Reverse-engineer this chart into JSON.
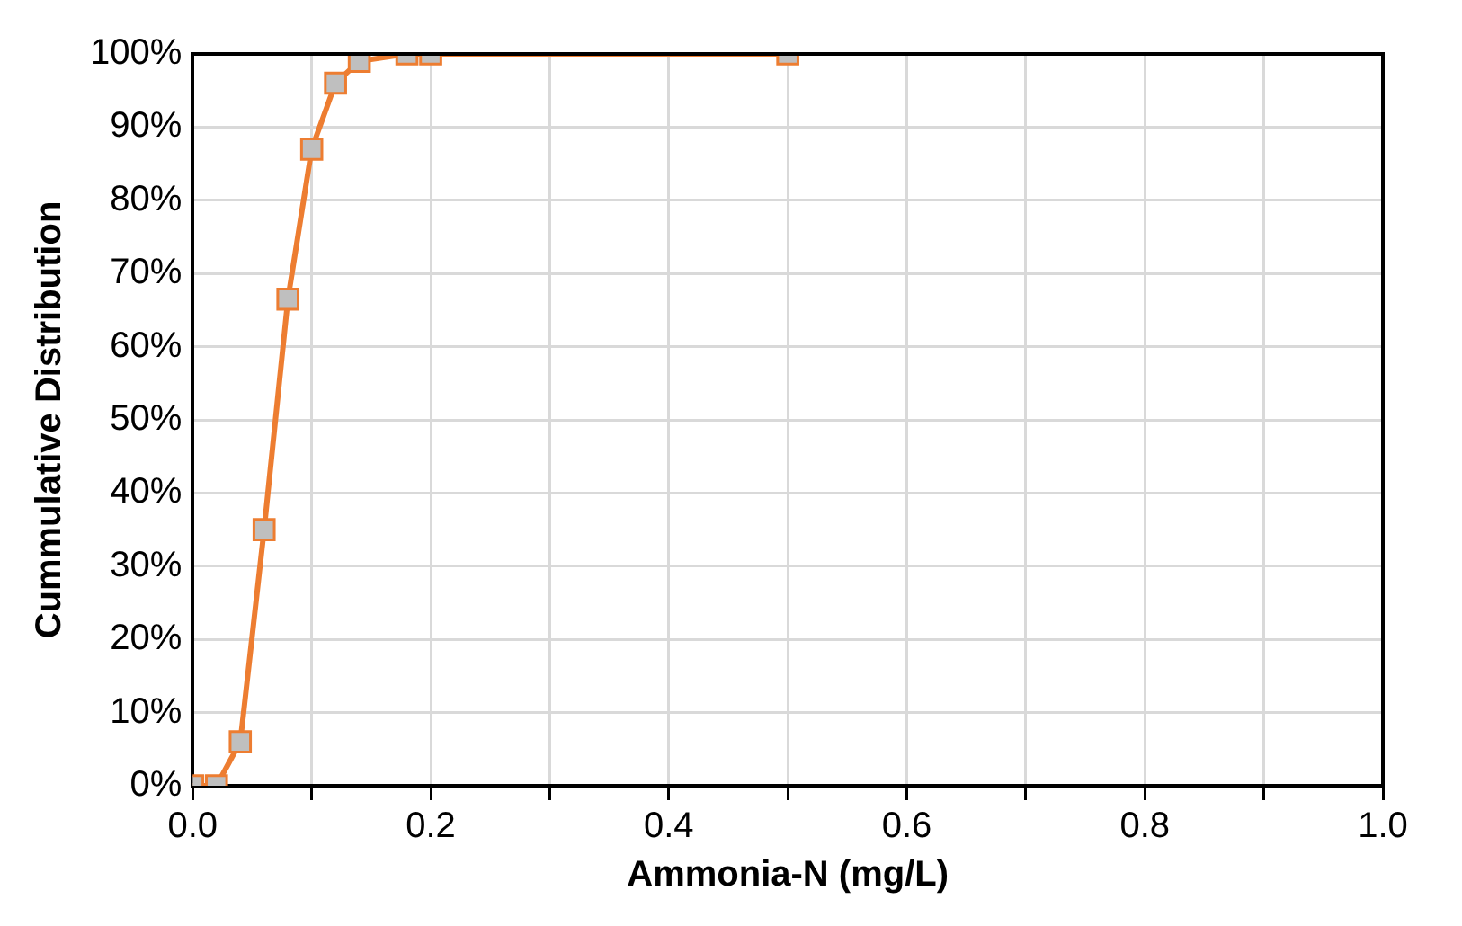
{
  "chart_data": {
    "type": "line",
    "xlabel": "Ammonia-N (mg/L)",
    "ylabel": "Cummulative Distribution",
    "x": [
      0,
      0.02,
      0.04,
      0.06,
      0.08,
      0.1,
      0.12,
      0.14,
      0.18,
      0.2,
      0.5
    ],
    "series": [
      {
        "color": "#ed7d31",
        "values": [
          0,
          0,
          6,
          35,
          66.5,
          87,
          96,
          99,
          100,
          100,
          100
        ]
      }
    ],
    "xlim": [
      0,
      1
    ],
    "xticks": [
      {
        "value": 0,
        "label": "0.0"
      },
      {
        "value": 0.1,
        "label": null
      },
      {
        "value": 0.2,
        "label": "0.2"
      },
      {
        "value": 0.3,
        "label": null
      },
      {
        "value": 0.4,
        "label": "0.4"
      },
      {
        "value": 0.5,
        "label": null
      },
      {
        "value": 0.6,
        "label": "0.6"
      },
      {
        "value": 0.7,
        "label": null
      },
      {
        "value": 0.8,
        "label": "0.8"
      },
      {
        "value": 0.9,
        "label": null
      },
      {
        "value": 1,
        "label": "1.0"
      }
    ],
    "ylim": [
      0,
      100
    ],
    "yticks": [
      {
        "value": 0,
        "label": "0%"
      },
      {
        "value": 10,
        "label": "10%"
      },
      {
        "value": 20,
        "label": "20%"
      },
      {
        "value": 30,
        "label": "30%"
      },
      {
        "value": 40,
        "label": "40%"
      },
      {
        "value": 50,
        "label": "50%"
      },
      {
        "value": 60,
        "label": "60%"
      },
      {
        "value": 70,
        "label": "70%"
      },
      {
        "value": 80,
        "label": "80%"
      },
      {
        "value": 90,
        "label": "90%"
      },
      {
        "value": 100,
        "label": "100%"
      }
    ],
    "grid": true,
    "legend": false,
    "marker": "square",
    "line_style": "solid"
  }
}
